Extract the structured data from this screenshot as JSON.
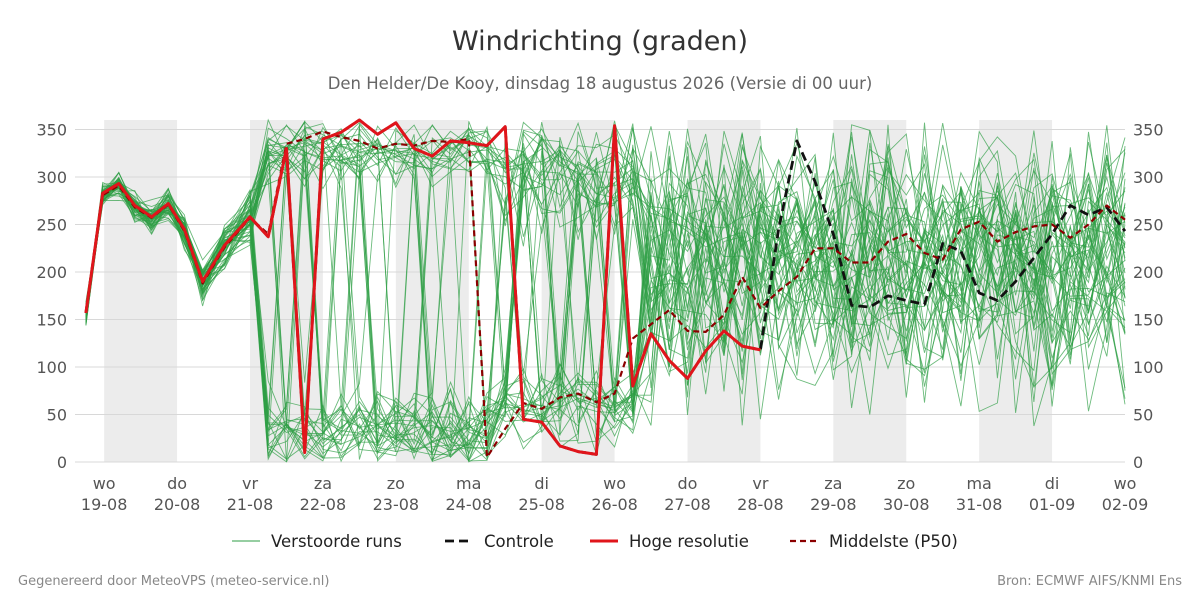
{
  "page": {
    "title": "Windrichting (graden)",
    "subtitle": "Den Helder/De Kooy, dinsdag 18 augustus 2026 (Versie di 00 uur)",
    "footer_left": "Gegenereerd door MeteoVPS (meteo-service.nl)",
    "footer_right": "Bron: ECMWF AIFS/KNMI Ens"
  },
  "chart_data": {
    "type": "line",
    "title": "Windrichting (graden)",
    "subtitle": "Den Helder/De Kooy, dinsdag 18 augustus 2026 (Versie di 00 uur)",
    "x_unit": "days since 2026-08-18 00:00",
    "xlim": [
      0.6,
      15.0
    ],
    "ylim": [
      0,
      360
    ],
    "yticks": [
      0,
      50,
      100,
      150,
      200,
      250,
      300,
      350
    ],
    "grid": true,
    "legend_position": "bottom",
    "night_shading": [
      [
        1.0,
        2.0
      ],
      [
        3.0,
        4.0
      ],
      [
        5.0,
        6.0
      ],
      [
        7.0,
        8.0
      ],
      [
        9.0,
        10.0
      ],
      [
        11.0,
        12.0
      ],
      [
        13.0,
        14.0
      ]
    ],
    "x_ticks": [
      {
        "x": 1,
        "day": "wo",
        "date": "19-08"
      },
      {
        "x": 2,
        "day": "do",
        "date": "20-08"
      },
      {
        "x": 3,
        "day": "vr",
        "date": "21-08"
      },
      {
        "x": 4,
        "day": "za",
        "date": "22-08"
      },
      {
        "x": 5,
        "day": "zo",
        "date": "23-08"
      },
      {
        "x": 6,
        "day": "ma",
        "date": "24-08"
      },
      {
        "x": 7,
        "day": "di",
        "date": "25-08"
      },
      {
        "x": 8,
        "day": "wo",
        "date": "26-08"
      },
      {
        "x": 9,
        "day": "do",
        "date": "27-08"
      },
      {
        "x": 10,
        "day": "vr",
        "date": "28-08"
      },
      {
        "x": 11,
        "day": "za",
        "date": "29-08"
      },
      {
        "x": 12,
        "day": "zo",
        "date": "30-08"
      },
      {
        "x": 13,
        "day": "ma",
        "date": "31-08"
      },
      {
        "x": 14,
        "day": "di",
        "date": "01-09"
      },
      {
        "x": 15,
        "day": "wo",
        "date": "02-09"
      }
    ],
    "legend": [
      {
        "key": "ens",
        "label": "Verstoorde runs",
        "color": "#2e9e44",
        "dash": "none",
        "width": 1
      },
      {
        "key": "ctrl",
        "label": "Controle",
        "color": "#111111",
        "dash": "9,5",
        "width": 2.8
      },
      {
        "key": "hres",
        "label": "Hoge resolutie",
        "color": "#e0151b",
        "dash": "none",
        "width": 3
      },
      {
        "key": "p50",
        "label": "Middelste (P50)",
        "color": "#8b0000",
        "dash": "6,4",
        "width": 2.2
      }
    ],
    "series": [
      {
        "name": "Hoge resolutie",
        "x": [
          0.75,
          0.98,
          1.2,
          1.42,
          1.65,
          1.88,
          2.1,
          2.35,
          2.65,
          3.0,
          3.25,
          3.5,
          3.75,
          4.0,
          4.25,
          4.5,
          4.75,
          5.0,
          5.25,
          5.5,
          5.75,
          6.0,
          6.25,
          6.5,
          6.75,
          7.0,
          7.25,
          7.5,
          7.75,
          8.0,
          8.25,
          8.5,
          8.75,
          9.0,
          9.25,
          9.5,
          9.75,
          10.0
        ],
        "values": [
          157,
          283,
          293,
          270,
          258,
          272,
          245,
          190,
          228,
          258,
          237,
          330,
          10,
          340,
          347,
          360,
          345,
          357,
          330,
          322,
          338,
          336,
          333,
          353,
          45,
          42,
          17,
          11,
          8,
          354,
          80,
          135,
          107,
          88,
          117,
          138,
          122,
          118
        ]
      },
      {
        "name": "Controle",
        "x": [
          0.75,
          0.98,
          1.2,
          1.42,
          1.65,
          1.88,
          2.1,
          2.35,
          2.65,
          3.0,
          3.25,
          3.5,
          3.75,
          4.0,
          4.25,
          4.5,
          4.75,
          5.0,
          5.25,
          5.5,
          5.75,
          6.0,
          6.25,
          6.5,
          6.75,
          7.0,
          7.25,
          7.5,
          7.75,
          8.0,
          8.25,
          8.5,
          8.75,
          9.0,
          9.25,
          9.5,
          9.75,
          10.0,
          10.25,
          10.5,
          10.75,
          11.0,
          11.25,
          11.5,
          11.75,
          12.0,
          12.25,
          12.5,
          12.75,
          13.0,
          13.25,
          13.5,
          13.75,
          14.0,
          14.25,
          14.5,
          14.75,
          15.0
        ],
        "values": [
          157,
          283,
          293,
          270,
          258,
          272,
          245,
          190,
          228,
          258,
          237,
          330,
          10,
          340,
          347,
          360,
          345,
          357,
          330,
          322,
          338,
          336,
          333,
          353,
          45,
          42,
          17,
          11,
          8,
          354,
          80,
          135,
          107,
          88,
          117,
          138,
          122,
          118,
          245,
          338,
          295,
          240,
          165,
          163,
          175,
          170,
          166,
          230,
          222,
          178,
          170,
          190,
          215,
          240,
          270,
          260,
          268,
          243
        ]
      },
      {
        "name": "Middelste (P50)",
        "x": [
          0.75,
          0.98,
          1.2,
          1.42,
          1.65,
          1.88,
          2.1,
          2.35,
          2.65,
          3.0,
          3.25,
          3.5,
          3.75,
          4.0,
          4.25,
          4.5,
          4.75,
          5.0,
          5.25,
          5.5,
          5.75,
          6.0,
          6.25,
          6.5,
          6.75,
          7.0,
          7.25,
          7.5,
          7.75,
          8.0,
          8.25,
          8.5,
          8.75,
          9.0,
          9.25,
          9.5,
          9.75,
          10.0,
          10.25,
          10.5,
          10.75,
          11.0,
          11.25,
          11.5,
          11.75,
          12.0,
          12.25,
          12.5,
          12.75,
          13.0,
          13.25,
          13.5,
          13.75,
          14.0,
          14.25,
          14.5,
          14.75,
          15.0
        ],
        "values": [
          157,
          281,
          291,
          268,
          257,
          271,
          243,
          188,
          226,
          257,
          240,
          335,
          340,
          348,
          342,
          338,
          330,
          335,
          333,
          338,
          337,
          340,
          5,
          35,
          62,
          56,
          68,
          72,
          63,
          72,
          130,
          145,
          160,
          138,
          137,
          155,
          195,
          162,
          180,
          195,
          225,
          225,
          210,
          210,
          232,
          240,
          220,
          213,
          245,
          253,
          232,
          242,
          248,
          250,
          236,
          250,
          270,
          255
        ]
      }
    ]
  }
}
